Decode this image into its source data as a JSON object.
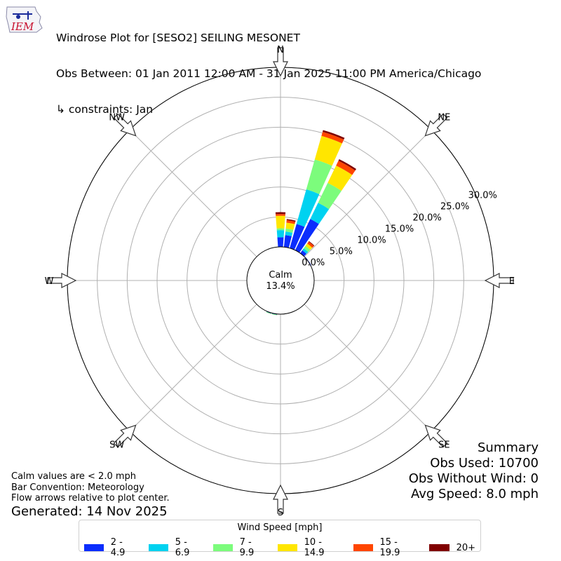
{
  "header": {
    "logo_text": "IEM",
    "title": "Windrose Plot for [SESO2] SEILING MESONET",
    "subtitle": "Obs Between: 01 Jan 2011 12:00 AM - 31 Jan 2025 11:00 PM America/Chicago",
    "constraints": "↳ constraints: Jan"
  },
  "summary": {
    "title": "Summary",
    "obs_used": "Obs Used: 10700",
    "obs_without_wind": "Obs Without Wind: 0",
    "avg_speed": "Avg Speed: 8.0 mph"
  },
  "notes": {
    "calm_note": "Calm values are < 2.0 mph",
    "bar_convention": "Bar Convention: Meteorology",
    "flow_arrows": "Flow arrows relative to plot center.",
    "generated": "Generated: 14 Nov 2025"
  },
  "chart_data": {
    "type": "windrose",
    "calm_label": "Calm",
    "calm_value": "13.4%",
    "radial_max": 30,
    "radial_ticks": [
      "0.0%",
      "5.0%",
      "10.0%",
      "15.0%",
      "20.0%",
      "25.0%",
      "30.0%"
    ],
    "radial_tick_values": [
      0,
      5,
      10,
      15,
      20,
      25,
      30
    ],
    "direction_labels": [
      "N",
      "NE",
      "E",
      "SE",
      "S",
      "SW",
      "W",
      "NW"
    ],
    "legend_title": "Wind Speed [mph]",
    "speed_bins": [
      {
        "label": "2 - 4.9",
        "color": "#0b2dfd"
      },
      {
        "label": "5 - 6.9",
        "color": "#00d2f0"
      },
      {
        "label": "7 - 9.9",
        "color": "#7cfc7c"
      },
      {
        "label": "10 - 14.9",
        "color": "#ffe600"
      },
      {
        "label": "15 - 19.9",
        "color": "#ff4500"
      },
      {
        "label": "20+",
        "color": "#800000"
      }
    ],
    "directions_deg": [
      0,
      10,
      20,
      30,
      40,
      50,
      60,
      190,
      200
    ],
    "cumulative_percent": [
      [
        1.6,
        2.8,
        3.1,
        5.2,
        5.5,
        5.8
      ],
      [
        2.0,
        2.6,
        3.1,
        4.1,
        4.5,
        4.7
      ],
      [
        4.2,
        10.2,
        15.4,
        19.5,
        20.2,
        20.5
      ],
      [
        5.8,
        8.8,
        12.5,
        15.7,
        16.6,
        16.9
      ],
      [
        0.6,
        1.0,
        1.5,
        2.0,
        2.4,
        2.5
      ],
      [
        0.1,
        0.1,
        0.1,
        0.1,
        0.1,
        0.1
      ],
      [
        0.1,
        0.1,
        0.1,
        0.1,
        0.1,
        0.1
      ],
      [
        0.1,
        0.1,
        0.2,
        0.2,
        0.2,
        0.2
      ],
      [
        0.1,
        0.1,
        0.2,
        0.2,
        0.2,
        0.2
      ]
    ]
  }
}
